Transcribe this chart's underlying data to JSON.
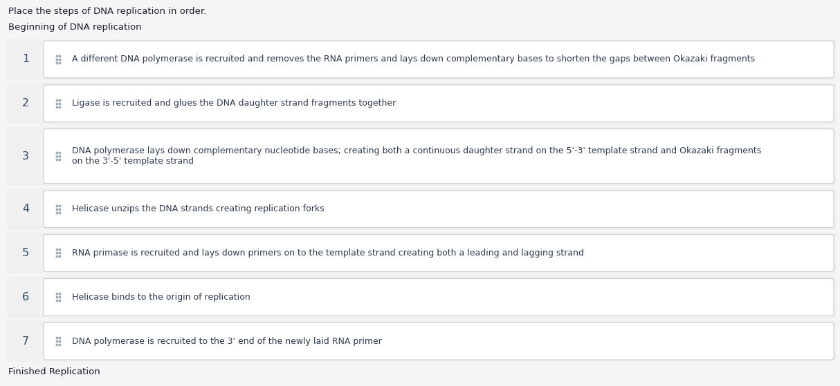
{
  "title": "Place the steps of DNA replication in order.",
  "beginning_label": "Beginning of DNA replication",
  "finished_label": "Finished Replication",
  "steps": [
    {
      "number": 1,
      "text": "A different DNA polymerase is recruited and removes the RNA primers and lays down complementary bases to shorten the gaps between Okazaki fragments",
      "multiline": false
    },
    {
      "number": 2,
      "text": "Ligase is recruited and glues the DNA daughter strand fragments together",
      "multiline": false
    },
    {
      "number": 3,
      "text": "DNA polymerase lays down complementary nucleotide bases; creating both a continuous daughter strand on the 5'-3' template strand and Okazaki fragments\non the 3'-5' template strand",
      "multiline": true
    },
    {
      "number": 4,
      "text": "Helicase unzips the DNA strands creating replication forks",
      "multiline": false
    },
    {
      "number": 5,
      "text": "RNA primase is recruited and lays down primers on to the template strand creating both a leading and lagging strand",
      "multiline": false
    },
    {
      "number": 6,
      "text": "Helicase binds to the origin of replication",
      "multiline": false
    },
    {
      "number": 7,
      "text": "DNA polymerase is recruited to the 3' end of the newly laid RNA primer",
      "multiline": false
    }
  ],
  "bg_color": "#f5f5f5",
  "outer_row_bg": "#f0f0f0",
  "box_bg": "#ffffff",
  "box_border": "#cccccc",
  "number_color": "#2d4a6e",
  "text_color": "#2d3a50",
  "label_color": "#1a1a2e",
  "title_color": "#1a1a2e",
  "dots_color": "#9aaabb",
  "title_fontsize": 9.5,
  "label_fontsize": 9.5,
  "step_fontsize": 9.0,
  "number_fontsize": 11.5,
  "fig_width": 12.14,
  "fig_height": 5.59,
  "dpi": 100
}
